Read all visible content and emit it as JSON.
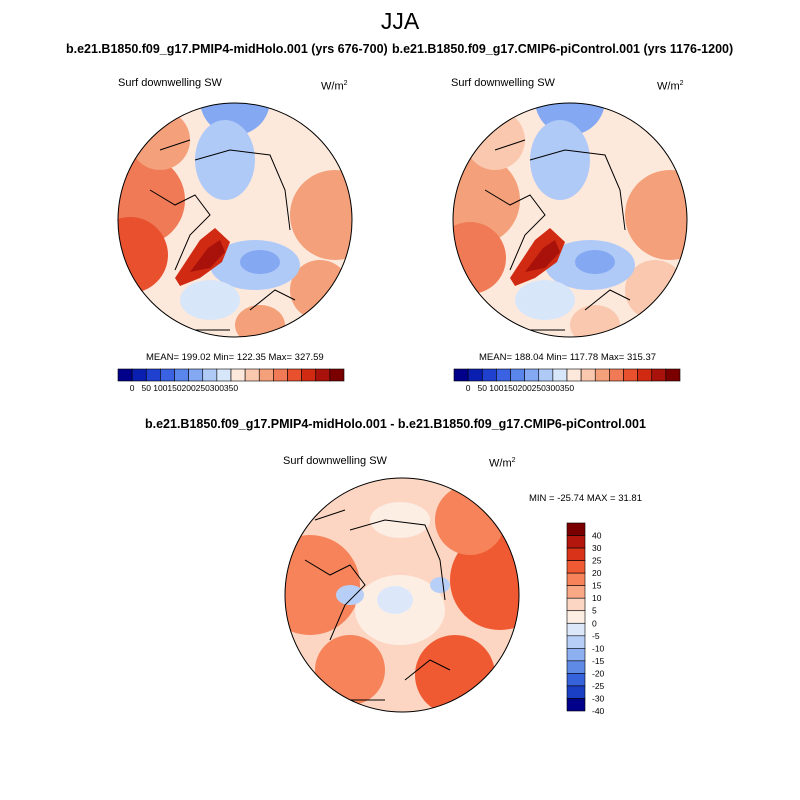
{
  "season": "JJA",
  "units_label": "W/m",
  "units_exp": "2",
  "panels": [
    {
      "title": "b.e21.B1850.f09_g17.PMIP4-midHolo.001 (yrs 676-700)",
      "field_label": "Surf downwelling SW",
      "stats_text": "MEAN= 199.02  Min= 122.35  Max= 327.59"
    },
    {
      "title": "b.e21.B1850.f09_g17.CMIP6-piControl.001 (yrs 1176-1200)",
      "field_label": "Surf downwelling SW",
      "stats_text": "MEAN= 188.04  Min= 117.78  Max= 315.37"
    }
  ],
  "diff_panel": {
    "title": "b.e21.B1850.f09_g17.PMIP4-midHolo.001 - b.e21.B1850.f09_g17.CMIP6-piControl.001",
    "field_label": "Surf downwelling SW",
    "minmax_text": "MIN = -25.74 MAX =  31.81"
  },
  "chart_data": [
    {
      "type": "heatmap",
      "projection": "north polar stereographic",
      "title": "b.e21.B1850.f09_g17.PMIP4-midHolo.001 (yrs 676-700)",
      "variable": "Surf downwelling SW",
      "units": "W/m^2",
      "mean": 199.02,
      "min": 122.35,
      "max": 327.59,
      "colorbar_ticks": [
        0,
        50,
        100,
        150,
        200,
        250,
        300,
        350
      ]
    },
    {
      "type": "heatmap",
      "projection": "north polar stereographic",
      "title": "b.e21.B1850.f09_g17.CMIP6-piControl.001 (yrs 1176-1200)",
      "variable": "Surf downwelling SW",
      "units": "W/m^2",
      "mean": 188.04,
      "min": 117.78,
      "max": 315.37,
      "colorbar_ticks": [
        0,
        50,
        100,
        150,
        200,
        250,
        300,
        350
      ]
    },
    {
      "type": "heatmap",
      "projection": "north polar stereographic",
      "title": "b.e21.B1850.f09_g17.PMIP4-midHolo.001 - b.e21.B1850.f09_g17.CMIP6-piControl.001",
      "variable": "Surf downwelling SW",
      "units": "W/m^2",
      "min": -25.74,
      "max": 31.81,
      "colorbar_ticks": [
        40,
        30,
        25,
        20,
        15,
        10,
        5,
        0,
        -5,
        -10,
        -15,
        -20,
        -25,
        -30,
        -40
      ]
    }
  ],
  "palette": {
    "abs": [
      "#00008b",
      "#0a1fb0",
      "#2040d0",
      "#3a62e2",
      "#5a86ec",
      "#84a8f2",
      "#b0caf8",
      "#d8e6fa",
      "#fde9dc",
      "#fac8ae",
      "#f4a07a",
      "#ef7a55",
      "#e8502e",
      "#d02a12",
      "#a8120a",
      "#7a0000"
    ],
    "diff": [
      "#7a0000",
      "#b3160c",
      "#d9331a",
      "#ef5a32",
      "#f6835a",
      "#f9a886",
      "#fcd6c2",
      "#fdeee4",
      "#dce8fa",
      "#b7cff6",
      "#8cb0f0",
      "#5f8be6",
      "#3663dc",
      "#1b3fc4",
      "#00008b"
    ]
  }
}
